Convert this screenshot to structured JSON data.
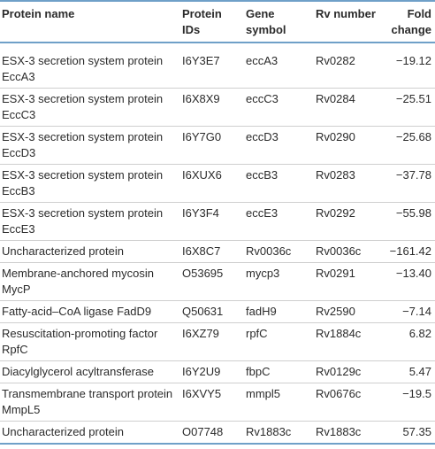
{
  "header": {
    "protein_name": "Protein name",
    "protein_ids": "Protein IDs",
    "gene_symbol": "Gene symbol",
    "rv_number": "Rv number",
    "fold_change": "Fold change"
  },
  "rows": [
    {
      "name": "ESX-3 secretion system protein EccA3",
      "id": "I6Y3E7",
      "gene": "eccA3",
      "rv": "Rv0282",
      "fold": "−19.12"
    },
    {
      "name": "ESX-3 secretion system protein EccC3",
      "id": "I6X8X9",
      "gene": "eccC3",
      "rv": "Rv0284",
      "fold": "−25.51"
    },
    {
      "name": "ESX-3 secretion system protein EccD3",
      "id": "I6Y7G0",
      "gene": "eccD3",
      "rv": "Rv0290",
      "fold": "−25.68"
    },
    {
      "name": "ESX-3 secretion system protein EccB3",
      "id": "I6XUX6",
      "gene": "eccB3",
      "rv": "Rv0283",
      "fold": "−37.78"
    },
    {
      "name": "ESX-3 secretion system protein EccE3",
      "id": "I6Y3F4",
      "gene": "eccE3",
      "rv": "Rv0292",
      "fold": "−55.98"
    },
    {
      "name": "Uncharacterized protein",
      "id": "I6X8C7",
      "gene": "Rv0036c",
      "rv": "Rv0036c",
      "fold": "−161.42"
    },
    {
      "name": "Membrane-anchored mycosin MycP",
      "id": "O53695",
      "gene": "mycp3",
      "rv": "Rv0291",
      "fold": "−13.40"
    },
    {
      "name": "Fatty-acid–CoA ligase FadD9",
      "id": "Q50631",
      "gene": "fadH9",
      "rv": "Rv2590",
      "fold": "−7.14"
    },
    {
      "name": "Resuscitation-promoting factor RpfC",
      "id": "I6XZ79",
      "gene": "rpfC",
      "rv": "Rv1884c",
      "fold": "6.82"
    },
    {
      "name": "Diacylglycerol acyltransferase",
      "id": "I6Y2U9",
      "gene": "fbpC",
      "rv": "Rv0129c",
      "fold": "5.47"
    },
    {
      "name": "Transmembrane transport protein MmpL5",
      "id": "I6XVY5",
      "gene": "mmpl5",
      "rv": "Rv0676c",
      "fold": "−19.5"
    },
    {
      "name": "Uncharacterized protein",
      "id": "O07748",
      "gene": "Rv1883c",
      "rv": "Rv1883c",
      "fold": "57.35"
    }
  ]
}
